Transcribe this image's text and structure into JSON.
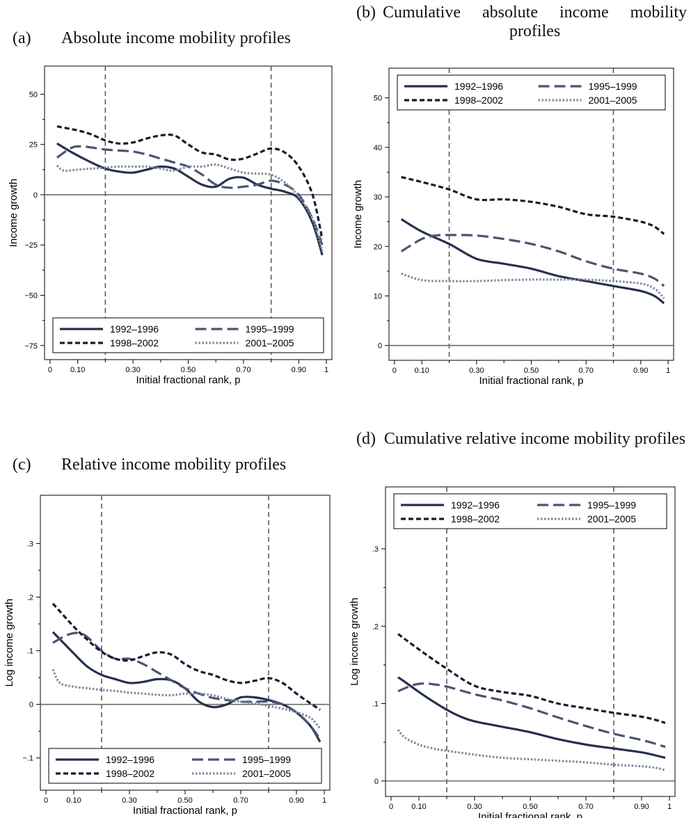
{
  "panels": [
    {
      "tag": "(a)",
      "caption": "Absolute income mobility profiles"
    },
    {
      "tag": "(b)",
      "caption": "Cumulative absolute income mobility profiles"
    },
    {
      "tag": "(c)",
      "caption": "Relative income mobility profiles"
    },
    {
      "tag": "(d)",
      "caption": "Cumulative relative income mobility profiles"
    }
  ],
  "colors": {
    "s1": "#26304f",
    "s2": "#4a5471",
    "s3": "#141a30",
    "s4": "#7f87a3",
    "ref": "#5a5a5a"
  },
  "chart_data": [
    {
      "type": "line",
      "title": "Absolute income mobility profiles",
      "xlabel": "Initial fractional rank, p",
      "ylabel": "Income growth",
      "xlim": [
        -0.02,
        1.02
      ],
      "ylim": [
        -82,
        64
      ],
      "xticks": [
        0,
        0.1,
        0.3,
        0.5,
        0.7,
        0.9,
        1
      ],
      "xtick_labels": [
        "0",
        "0.10",
        "0.30",
        "0.50",
        "0.70",
        "0.90",
        "1"
      ],
      "yticks": [
        -75,
        -50,
        -25,
        0,
        25,
        50
      ],
      "ytick_labels": [
        "−75",
        "−50",
        "−25",
        "0",
        "25",
        "50"
      ],
      "vlines": [
        0.2,
        0.8
      ],
      "hline": 0,
      "legend_position": "bottom",
      "series": [
        {
          "name": "1992–1996",
          "x": [
            0.025,
            0.08,
            0.15,
            0.2,
            0.25,
            0.3,
            0.35,
            0.4,
            0.45,
            0.5,
            0.55,
            0.6,
            0.65,
            0.7,
            0.75,
            0.8,
            0.85,
            0.9,
            0.95,
            0.985
          ],
          "y": [
            25.5,
            21,
            16,
            13,
            11.5,
            11,
            12.5,
            14,
            13,
            9,
            5,
            4,
            8,
            8.5,
            5,
            3,
            1.5,
            -2,
            -14,
            -30
          ]
        },
        {
          "name": "1995–1999",
          "x": [
            0.025,
            0.08,
            0.12,
            0.15,
            0.2,
            0.25,
            0.3,
            0.35,
            0.4,
            0.45,
            0.5,
            0.55,
            0.6,
            0.65,
            0.7,
            0.75,
            0.8,
            0.85,
            0.9,
            0.95,
            0.985
          ],
          "y": [
            18.5,
            23.5,
            24,
            23.5,
            22.5,
            22,
            21.5,
            20,
            18,
            16,
            14,
            10,
            5,
            3.5,
            4,
            5,
            7,
            5,
            0,
            -12,
            -25
          ]
        },
        {
          "name": "1998–2002",
          "x": [
            0.025,
            0.1,
            0.15,
            0.2,
            0.25,
            0.3,
            0.35,
            0.4,
            0.45,
            0.5,
            0.55,
            0.6,
            0.65,
            0.7,
            0.75,
            0.8,
            0.85,
            0.9,
            0.95,
            0.985
          ],
          "y": [
            34,
            32,
            30,
            27,
            25.5,
            26,
            28,
            29.5,
            29.5,
            25,
            21,
            20,
            17.5,
            18,
            20.5,
            23,
            21,
            14,
            0,
            -22
          ]
        },
        {
          "name": "2001–2005",
          "x": [
            0.025,
            0.05,
            0.1,
            0.15,
            0.2,
            0.25,
            0.3,
            0.35,
            0.4,
            0.45,
            0.5,
            0.55,
            0.6,
            0.65,
            0.7,
            0.75,
            0.8,
            0.85,
            0.9,
            0.95,
            0.985
          ],
          "y": [
            14.5,
            12,
            12.5,
            13,
            13.5,
            14,
            14,
            14,
            13,
            12,
            14,
            14,
            15,
            13,
            11,
            10.5,
            10,
            6,
            -1,
            -12,
            -28
          ]
        }
      ]
    },
    {
      "type": "line",
      "title": "Cumulative absolute income mobility profiles",
      "xlabel": "Initial fractional rank, p",
      "ylabel": "Income growth",
      "xlim": [
        -0.02,
        1.02
      ],
      "ylim": [
        -3,
        56
      ],
      "xticks": [
        0,
        0.1,
        0.3,
        0.5,
        0.7,
        0.9,
        1
      ],
      "xtick_labels": [
        "0",
        "0.10",
        "0.30",
        "0.50",
        "0.70",
        "0.90",
        "1"
      ],
      "yticks": [
        0,
        10,
        20,
        30,
        40,
        50
      ],
      "ytick_labels": [
        "0",
        "10",
        "20",
        "30",
        "40",
        "50"
      ],
      "vlines": [
        0.2,
        0.8
      ],
      "hline": 0,
      "legend_position": "top",
      "series": [
        {
          "name": "1992–1996",
          "x": [
            0.025,
            0.1,
            0.2,
            0.3,
            0.4,
            0.5,
            0.6,
            0.7,
            0.8,
            0.9,
            0.95,
            0.985
          ],
          "y": [
            25.5,
            23,
            20.5,
            17.5,
            16.5,
            15.5,
            14,
            13,
            12,
            11,
            10,
            8.5
          ]
        },
        {
          "name": "1995–1999",
          "x": [
            0.025,
            0.1,
            0.15,
            0.2,
            0.3,
            0.4,
            0.5,
            0.6,
            0.7,
            0.8,
            0.9,
            0.95,
            0.985
          ],
          "y": [
            19,
            21.5,
            22.2,
            22.3,
            22.2,
            21.5,
            20.5,
            19,
            17,
            15.5,
            14.5,
            13.5,
            12
          ]
        },
        {
          "name": "1998–2002",
          "x": [
            0.025,
            0.1,
            0.2,
            0.3,
            0.4,
            0.5,
            0.6,
            0.7,
            0.8,
            0.9,
            0.95,
            0.985
          ],
          "y": [
            34,
            33,
            31.5,
            29.5,
            29.5,
            29,
            28,
            26.5,
            26,
            25,
            24,
            22.5
          ]
        },
        {
          "name": "2001–2005",
          "x": [
            0.025,
            0.1,
            0.2,
            0.3,
            0.4,
            0.5,
            0.6,
            0.7,
            0.8,
            0.9,
            0.95,
            0.985
          ],
          "y": [
            14.5,
            13.2,
            13,
            13,
            13.2,
            13.3,
            13.3,
            13.3,
            13,
            12.5,
            11.5,
            9.5
          ]
        }
      ]
    },
    {
      "type": "line",
      "title": "Relative income mobility profiles",
      "xlabel": "Initial fractional rank, p",
      "ylabel": "Log income growth",
      "xlim": [
        -0.02,
        1.02
      ],
      "ylim": [
        -0.16,
        0.39
      ],
      "xticks": [
        0,
        0.1,
        0.3,
        0.5,
        0.7,
        0.9,
        1
      ],
      "xtick_labels": [
        "0",
        "0.10",
        "0.30",
        "0.50",
        "0.70",
        "0.90",
        "1"
      ],
      "yticks": [
        -0.1,
        0,
        0.1,
        0.2,
        0.3
      ],
      "ytick_labels": [
        "−.1",
        "0",
        ".1",
        ".2",
        ".3"
      ],
      "vlines": [
        0.2,
        0.8
      ],
      "hline": 0,
      "legend_position": "bottom",
      "series": [
        {
          "name": "1992–1996",
          "x": [
            0.025,
            0.1,
            0.15,
            0.2,
            0.25,
            0.3,
            0.35,
            0.4,
            0.45,
            0.5,
            0.55,
            0.6,
            0.65,
            0.7,
            0.75,
            0.8,
            0.85,
            0.9,
            0.95,
            0.985
          ],
          "y": [
            0.135,
            0.095,
            0.07,
            0.055,
            0.047,
            0.04,
            0.042,
            0.047,
            0.045,
            0.03,
            0.005,
            -0.005,
            0,
            0.013,
            0.013,
            0.008,
            0,
            -0.015,
            -0.04,
            -0.07
          ]
        },
        {
          "name": "1995–1999",
          "x": [
            0.025,
            0.08,
            0.12,
            0.15,
            0.2,
            0.25,
            0.3,
            0.35,
            0.4,
            0.45,
            0.5,
            0.55,
            0.6,
            0.65,
            0.7,
            0.75,
            0.8,
            0.85,
            0.9,
            0.95,
            0.985
          ],
          "y": [
            0.115,
            0.13,
            0.133,
            0.125,
            0.1,
            0.085,
            0.085,
            0.075,
            0.06,
            0.045,
            0.03,
            0.02,
            0.012,
            0.008,
            0.005,
            0.005,
            0.005,
            0,
            -0.015,
            -0.04,
            -0.065
          ]
        },
        {
          "name": "1998–2002",
          "x": [
            0.025,
            0.1,
            0.15,
            0.2,
            0.25,
            0.3,
            0.35,
            0.4,
            0.45,
            0.5,
            0.55,
            0.6,
            0.65,
            0.7,
            0.75,
            0.8,
            0.85,
            0.9,
            0.95,
            0.985
          ],
          "y": [
            0.188,
            0.145,
            0.12,
            0.098,
            0.085,
            0.082,
            0.09,
            0.097,
            0.093,
            0.075,
            0.062,
            0.055,
            0.045,
            0.04,
            0.044,
            0.049,
            0.04,
            0.02,
            0.002,
            -0.01
          ]
        },
        {
          "name": "2001–2005",
          "x": [
            0.025,
            0.05,
            0.1,
            0.15,
            0.2,
            0.25,
            0.3,
            0.35,
            0.4,
            0.45,
            0.5,
            0.55,
            0.6,
            0.65,
            0.7,
            0.75,
            0.8,
            0.85,
            0.9,
            0.95,
            0.985
          ],
          "y": [
            0.065,
            0.04,
            0.033,
            0.03,
            0.027,
            0.025,
            0.022,
            0.02,
            0.018,
            0.017,
            0.02,
            0.02,
            0.017,
            0.01,
            0.005,
            0.002,
            -0.003,
            -0.008,
            -0.015,
            -0.025,
            -0.045
          ]
        }
      ]
    },
    {
      "type": "line",
      "title": "Cumulative relative income mobility profiles",
      "xlabel": "Initial fractional rank, p",
      "ylabel": "Log income growth",
      "xlim": [
        -0.02,
        1.02
      ],
      "ylim": [
        -0.02,
        0.38
      ],
      "xticks": [
        0,
        0.1,
        0.3,
        0.5,
        0.7,
        0.9,
        1
      ],
      "xtick_labels": [
        "0",
        "0.10",
        "0.30",
        "0.50",
        "0.70",
        "0.90",
        "1"
      ],
      "yticks": [
        0,
        0.1,
        0.2,
        0.3
      ],
      "ytick_labels": [
        "0",
        ".1",
        ".2",
        ".3"
      ],
      "vlines": [
        0.2,
        0.8
      ],
      "hline": 0,
      "legend_position": "top",
      "series": [
        {
          "name": "1992–1996",
          "x": [
            0.025,
            0.05,
            0.1,
            0.15,
            0.2,
            0.25,
            0.3,
            0.4,
            0.5,
            0.6,
            0.7,
            0.8,
            0.9,
            0.95,
            0.985
          ],
          "y": [
            0.134,
            0.128,
            0.115,
            0.103,
            0.092,
            0.083,
            0.077,
            0.07,
            0.063,
            0.054,
            0.047,
            0.042,
            0.037,
            0.033,
            0.03
          ]
        },
        {
          "name": "1995–1999",
          "x": [
            0.025,
            0.08,
            0.12,
            0.15,
            0.2,
            0.3,
            0.4,
            0.5,
            0.6,
            0.7,
            0.8,
            0.9,
            0.95,
            0.985
          ],
          "y": [
            0.116,
            0.124,
            0.126,
            0.125,
            0.122,
            0.112,
            0.104,
            0.094,
            0.082,
            0.071,
            0.061,
            0.053,
            0.048,
            0.044
          ]
        },
        {
          "name": "1998–2002",
          "x": [
            0.025,
            0.1,
            0.2,
            0.3,
            0.4,
            0.5,
            0.6,
            0.7,
            0.8,
            0.9,
            0.95,
            0.985
          ],
          "y": [
            0.19,
            0.17,
            0.145,
            0.123,
            0.115,
            0.11,
            0.1,
            0.094,
            0.088,
            0.083,
            0.079,
            0.075
          ]
        },
        {
          "name": "2001–2005",
          "x": [
            0.025,
            0.05,
            0.1,
            0.15,
            0.2,
            0.3,
            0.4,
            0.5,
            0.6,
            0.7,
            0.8,
            0.9,
            0.95,
            0.985
          ],
          "y": [
            0.066,
            0.056,
            0.047,
            0.042,
            0.039,
            0.034,
            0.03,
            0.028,
            0.026,
            0.024,
            0.021,
            0.019,
            0.017,
            0.014
          ]
        }
      ]
    }
  ]
}
